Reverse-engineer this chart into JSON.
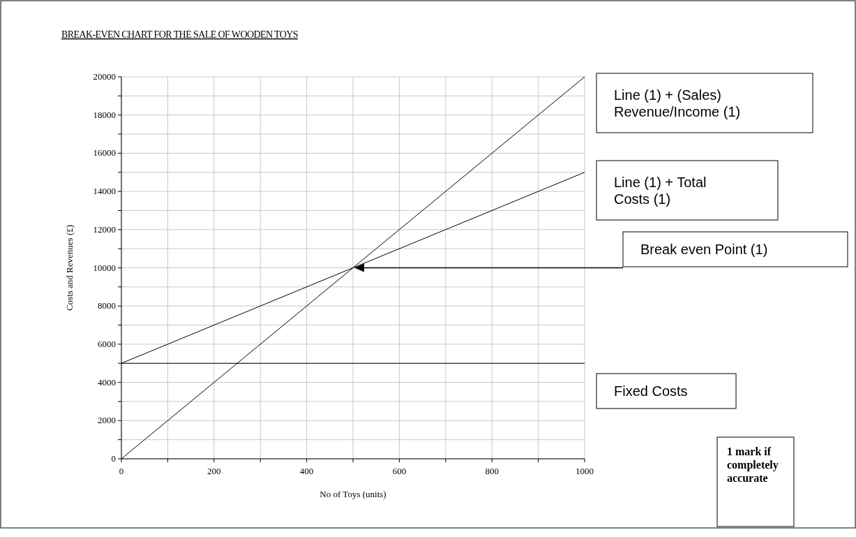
{
  "chart_data": {
    "type": "line",
    "title": "BREAK-EVEN CHART FOR THE SALE OF WOODEN TOYS",
    "xlabel": "No of Toys (units)",
    "ylabel": "Costs and Revenues (£)",
    "x": [
      0,
      1000
    ],
    "series": [
      {
        "color": "#000000",
        "values": [
          0,
          20000
        ]
      },
      {
        "color": "#000000",
        "values": [
          5000,
          15000
        ]
      },
      {
        "color": "#000000",
        "values": [
          5000,
          5000
        ]
      }
    ],
    "xlim": [
      0,
      1000
    ],
    "ylim": [
      0,
      20000
    ],
    "xticks": [
      0,
      {
        "value": 100,
        "label": null
      },
      200,
      {
        "value": 300,
        "label": null
      },
      400,
      {
        "value": 500,
        "label": null
      },
      600,
      {
        "value": 700,
        "label": null
      },
      800,
      {
        "value": 900,
        "label": null
      },
      1000
    ],
    "yticks": [
      0,
      {
        "value": 1000,
        "label": null
      },
      2000,
      {
        "value": 3000,
        "label": null
      },
      4000,
      {
        "value": 5000,
        "label": null
      },
      6000,
      {
        "value": 7000,
        "label": null
      },
      8000,
      {
        "value": 9000,
        "label": null
      },
      10000,
      {
        "value": 11000,
        "label": null
      },
      12000,
      {
        "value": 13000,
        "label": null
      },
      14000,
      {
        "value": 15000,
        "label": null
      },
      16000,
      {
        "value": 17000,
        "label": null
      },
      18000,
      {
        "value": 19000,
        "label": null
      },
      20000
    ],
    "grid": true,
    "marker": "none",
    "line_style": "solid",
    "annotations": [
      "Line (1) + (Sales) Revenue/Income (1)",
      "Line (1) + Total Costs (1)",
      "Break even Point (1)",
      "Fixed Costs",
      "1 mark if completely accurate"
    ]
  }
}
